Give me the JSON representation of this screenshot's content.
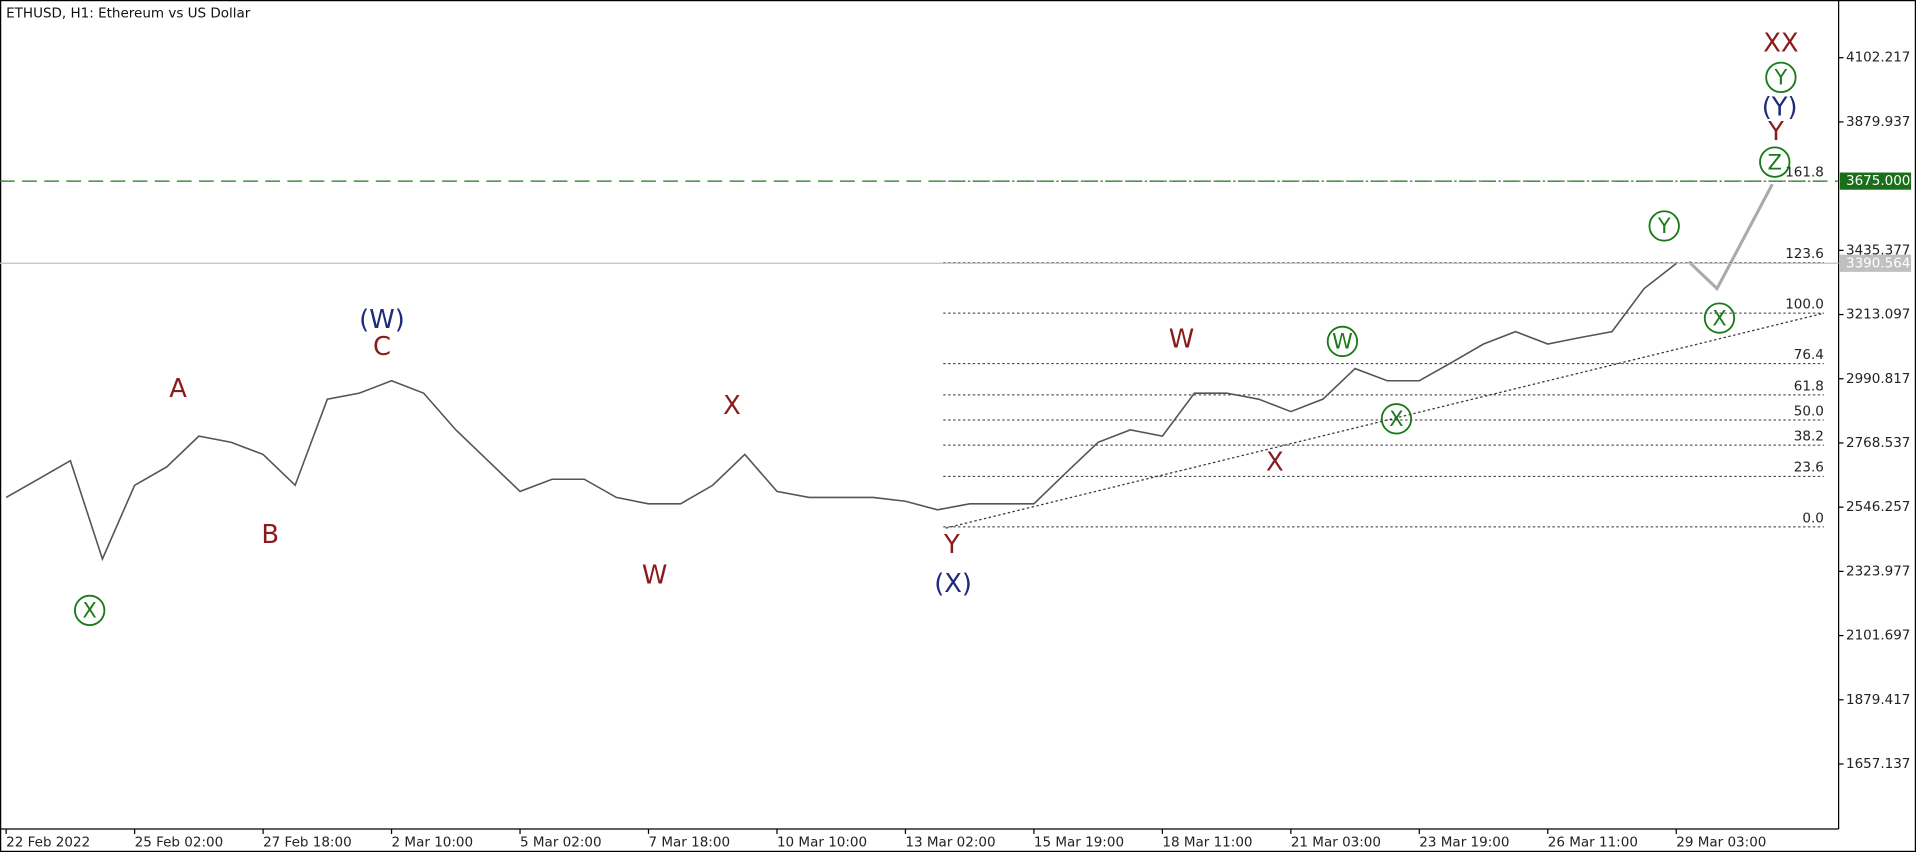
{
  "chart_data": {
    "type": "line",
    "title": "ETHUSD, H1:  Ethereum vs US Dollar",
    "categories": [
      "22 Feb 2022",
      null,
      null,
      null,
      "25 Feb 02:00",
      null,
      null,
      null,
      "27 Feb 18:00",
      null,
      null,
      null,
      "2 Mar 10:00",
      null,
      null,
      null,
      "5 Mar 02:00",
      null,
      null,
      null,
      "7 Mar 18:00",
      null,
      null,
      null,
      "10 Mar 10:00",
      null,
      null,
      null,
      "13 Mar 02:00",
      null,
      null,
      null,
      "15 Mar 19:00",
      null,
      null,
      null,
      "18 Mar 11:00",
      null,
      null,
      null,
      "21 Mar 03:00",
      null,
      null,
      null,
      "23 Mar 19:00",
      null,
      null,
      null,
      "26 Mar 11:00",
      null,
      null,
      null,
      "29 Mar 03:00"
    ],
    "values": [
      2580,
      2643,
      2707,
      2367,
      2622,
      2686,
      2792,
      2771,
      2729,
      2622,
      2920,
      2941,
      2984,
      2941,
      2814,
      2707,
      2601,
      2643,
      2643,
      2580,
      2558,
      2558,
      2622,
      2729,
      2601,
      2580,
      2580,
      2580,
      2567,
      2537,
      2558,
      2558,
      2558,
      2665,
      2771,
      2814,
      2792,
      2941,
      2941,
      2920,
      2877,
      2920,
      3026,
      2984,
      2984,
      3047,
      3111,
      3154,
      3111,
      3133,
      3154,
      3303,
      3390
    ],
    "color": "#555555",
    "ylim": [
      1432,
      4302
    ],
    "yticks": [
      1657.137,
      1879.417,
      2101.697,
      2323.977,
      2546.257,
      2768.537,
      2990.817,
      3213.097,
      3435.377,
      3879.937,
      4102.217
    ],
    "levels": [
      {
        "value": 3675,
        "label": "3675.000"
      }
    ],
    "last_price": 3390.564,
    "fib_labels": [
      "0.0",
      "23.6",
      "38.2",
      "50.0",
      "61.8",
      "76.4",
      "100.0",
      "123.6",
      "161.8"
    ],
    "fib_values": [
      2478,
      2653,
      2761,
      2848,
      2935,
      3043,
      3218,
      3393,
      3675
    ],
    "waves": [
      "X",
      "A",
      "B",
      "C",
      "(W)",
      "W",
      "X",
      "Y",
      "(X)",
      "W",
      "X",
      "W",
      "X",
      "Y",
      "X",
      "Z",
      "Y",
      "(Y)",
      "Y",
      "XX"
    ]
  }
}
